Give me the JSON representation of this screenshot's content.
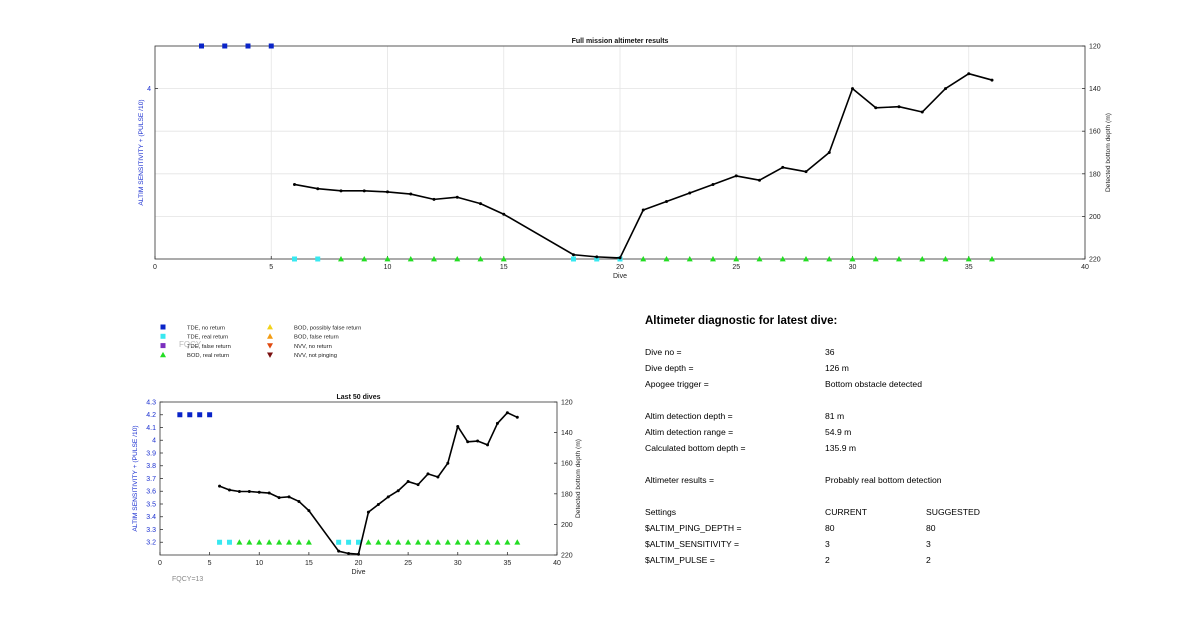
{
  "chart_data": [
    {
      "type": "line",
      "title": "Full mission altimeter results",
      "xlabel": "Dive",
      "ylabel_left": "ALTIM SENSITIVITY + (PULSE /10)",
      "ylabel_right": "Detected bottom depth (m)",
      "xlim": [
        0,
        40
      ],
      "xticks": [
        0,
        5,
        10,
        15,
        20,
        25,
        30,
        35,
        40
      ],
      "yticks_left": [
        4
      ],
      "yticks_right": [
        120,
        140,
        160,
        180,
        200,
        220
      ],
      "right_axis_reversed": true,
      "right_ylim": [
        120,
        220
      ],
      "grid": true,
      "series": [
        {
          "name": "TDE, no return",
          "color": "#0a24c8",
          "marker": "square",
          "x": [
            2,
            3,
            4,
            5
          ],
          "y_right": [
            120,
            120,
            120,
            120
          ]
        },
        {
          "name": "TDE, real return",
          "color": "#38e8f0",
          "marker": "square",
          "x": [
            6,
            7,
            18,
            19,
            20
          ],
          "y_right": [
            220,
            220,
            220,
            220,
            220
          ]
        },
        {
          "name": "BOD, real return",
          "color": "#22dd22",
          "marker": "triangle-up",
          "x": [
            8,
            9,
            10,
            11,
            12,
            13,
            14,
            15,
            21,
            22,
            23,
            24,
            25,
            26,
            27,
            28,
            29,
            30,
            31,
            32,
            33,
            34,
            35,
            36
          ],
          "y_right": [
            220,
            220,
            220,
            220,
            220,
            220,
            220,
            220,
            220,
            220,
            220,
            220,
            220,
            220,
            220,
            220,
            220,
            220,
            220,
            220,
            220,
            220,
            220,
            220
          ]
        },
        {
          "name": "Detected bottom depth",
          "color": "#000000",
          "marker": "dot",
          "x": [
            6,
            7,
            8,
            9,
            10,
            11,
            12,
            13,
            14,
            15,
            18,
            19,
            20,
            21,
            22,
            23,
            24,
            25,
            26,
            27,
            28,
            29,
            30,
            31,
            32,
            33,
            34,
            35,
            36
          ],
          "y_right": [
            185,
            187,
            188,
            188,
            188.5,
            189.5,
            192,
            191,
            194,
            199,
            218,
            219,
            219.5,
            197,
            193,
            189,
            185,
            181,
            183,
            177,
            179,
            170,
            140,
            149,
            148.5,
            151,
            140,
            133,
            136
          ]
        }
      ]
    },
    {
      "type": "line",
      "title": "Last 50 dives",
      "xlabel": "Dive",
      "ylabel_left": "ALTIM SENSITIVITY + (PULSE /10)",
      "ylabel_right": "Detected bottom depth (m)",
      "xlim": [
        0,
        40
      ],
      "xticks": [
        0,
        5,
        10,
        15,
        20,
        25,
        30,
        35,
        40
      ],
      "ylim_left": [
        3.1,
        4.3
      ],
      "yticks_left": [
        3.2,
        3.3,
        3.4,
        3.5,
        3.6,
        3.7,
        3.8,
        3.9,
        4,
        4.1,
        4.2,
        4.3
      ],
      "yticks_right": [
        120,
        140,
        160,
        180,
        200,
        220
      ],
      "right_axis_reversed": true,
      "right_ylim": [
        120,
        220
      ],
      "grid": false,
      "annotation": "FQCY=13",
      "series": [
        {
          "name": "TDE, no return",
          "color": "#0a24c8",
          "marker": "square",
          "x": [
            2,
            3,
            4,
            5
          ],
          "y_left": [
            4.2,
            4.2,
            4.2,
            4.2
          ]
        },
        {
          "name": "TDE, real return",
          "color": "#38e8f0",
          "marker": "square",
          "x": [
            6,
            7,
            18,
            19,
            20
          ],
          "y_left": [
            3.2,
            3.2,
            3.2,
            3.2,
            3.2
          ]
        },
        {
          "name": "BOD, real return",
          "color": "#22dd22",
          "marker": "triangle-up",
          "x": [
            8,
            9,
            10,
            11,
            12,
            13,
            14,
            15,
            21,
            22,
            23,
            24,
            25,
            26,
            27,
            28,
            29,
            30,
            31,
            32,
            33,
            34,
            35,
            36
          ],
          "y_left": [
            3.2,
            3.2,
            3.2,
            3.2,
            3.2,
            3.2,
            3.2,
            3.2,
            3.2,
            3.2,
            3.2,
            3.2,
            3.2,
            3.2,
            3.2,
            3.2,
            3.2,
            3.2,
            3.2,
            3.2,
            3.2,
            3.2,
            3.2,
            3.2
          ]
        },
        {
          "name": "Detected bottom depth",
          "color": "#000000",
          "marker": "dot",
          "x": [
            6,
            7,
            8,
            9,
            10,
            11,
            12,
            13,
            14,
            15,
            18,
            19,
            20,
            21,
            22,
            23,
            24,
            25,
            26,
            27,
            28,
            29,
            30,
            31,
            32,
            33,
            34,
            35,
            36
          ],
          "y_right": [
            175,
            177.5,
            178.5,
            178.5,
            179,
            179.5,
            182.5,
            182,
            185,
            191,
            217.5,
            219,
            219.5,
            192,
            187,
            182,
            178,
            172,
            174,
            167,
            169,
            160,
            136,
            146,
            145.5,
            148,
            134,
            127,
            130
          ]
        }
      ]
    }
  ],
  "legend": {
    "items": [
      {
        "label": "TDE, no return",
        "color": "#0a24c8",
        "marker": "square"
      },
      {
        "label": "TDE, real return",
        "color": "#38e8f0",
        "marker": "square"
      },
      {
        "label": "TDE, false return",
        "color": "#7b2fbe",
        "marker": "square"
      },
      {
        "label": "BOD, real return",
        "color": "#22dd22",
        "marker": "triangle-up"
      },
      {
        "label": "BOD, possibly false return",
        "color": "#f2d21a",
        "marker": "triangle-up"
      },
      {
        "label": "BOD, false return",
        "color": "#f39c12",
        "marker": "triangle-up"
      },
      {
        "label": "NVV, no return",
        "color": "#e04a10",
        "marker": "triangle-down"
      },
      {
        "label": "NVV, not pinging",
        "color": "#7a1010",
        "marker": "triangle-down"
      }
    ],
    "overlap_text": "FQCY"
  },
  "diagnostic": {
    "title": "Altimeter diagnostic for latest dive:",
    "rows": [
      {
        "label": "Dive no =",
        "value": "36",
        "suggested": ""
      },
      {
        "label": "Dive depth =",
        "value": "126 m",
        "suggested": ""
      },
      {
        "label": "Apogee trigger =",
        "value": "Bottom obstacle detected",
        "suggested": ""
      },
      {
        "label": "Altim detection depth =",
        "value": "81 m",
        "suggested": ""
      },
      {
        "label": "Altim detection range =",
        "value": "54.9 m",
        "suggested": ""
      },
      {
        "label": "Calculated bottom depth =",
        "value": "135.9 m",
        "suggested": ""
      },
      {
        "label": "Altimeter results =",
        "value": "Probably real bottom detection",
        "suggested": ""
      },
      {
        "label": "Settings",
        "value": "CURRENT",
        "suggested": "SUGGESTED"
      },
      {
        "label": "$ALTIM_PING_DEPTH =",
        "value": "80",
        "suggested": "80"
      },
      {
        "label": "$ALTIM_SENSITIVITY =",
        "value": "3",
        "suggested": "3"
      },
      {
        "label": "$ALTIM_PULSE =",
        "value": "2",
        "suggested": "2"
      }
    ]
  }
}
